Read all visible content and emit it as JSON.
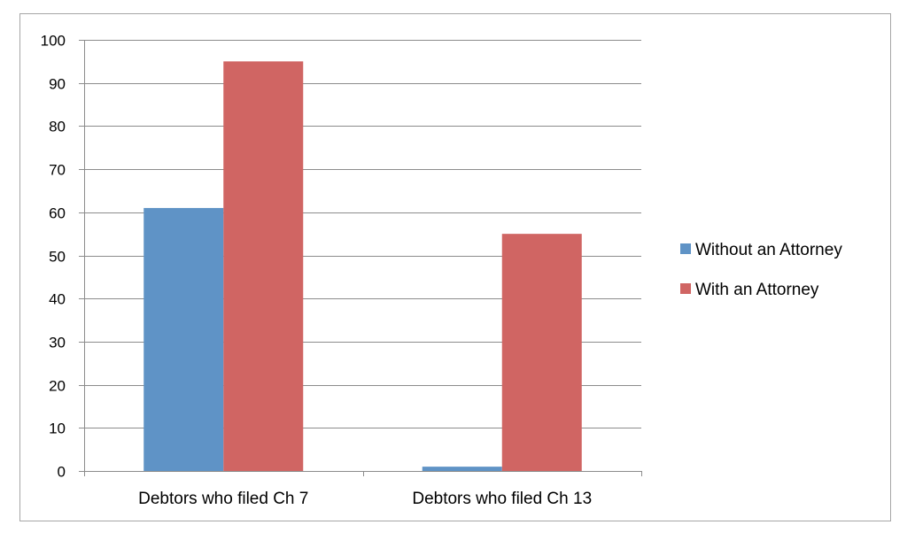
{
  "chart_data": {
    "type": "bar",
    "categories": [
      "Debtors who filed Ch 7",
      "Debtors who filed Ch 13"
    ],
    "series": [
      {
        "name": "Without an Attorney",
        "color": "#5f93c6",
        "values": [
          61,
          1
        ]
      },
      {
        "name": "With an Attorney",
        "color": "#d06563",
        "values": [
          95,
          55
        ]
      }
    ],
    "ylim": [
      0,
      100
    ],
    "yticks": [
      0,
      10,
      20,
      30,
      40,
      50,
      60,
      70,
      80,
      90,
      100
    ],
    "grid": true,
    "legend_position": "right",
    "gridline_color": "#8c8c8c",
    "axis_color": "#8c8c8c"
  }
}
